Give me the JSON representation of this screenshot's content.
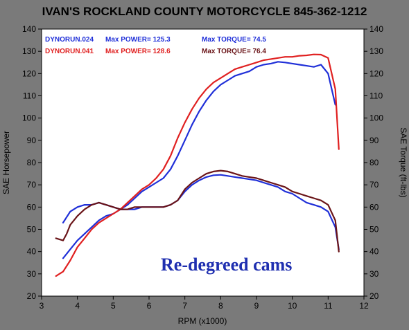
{
  "chart_data": {
    "type": "line",
    "title": "IVAN'S ROCKLAND COUNTY MOTORCYCLE 845-362-1212",
    "xlabel": "RPM (x1000)",
    "ylabel_left": "SAE Horsepower",
    "ylabel_right": "SAE Torque (ft-lbs)",
    "annotation": "Re-degreed cams",
    "xlim": [
      3,
      12
    ],
    "ylim": [
      20,
      140
    ],
    "x_ticks": [
      "3",
      "4",
      "5",
      "6",
      "7",
      "8",
      "9",
      "10",
      "11",
      "12"
    ],
    "y_ticks": [
      "20",
      "30",
      "40",
      "50",
      "60",
      "70",
      "80",
      "90",
      "100",
      "110",
      "120",
      "130",
      "140"
    ],
    "grid": false,
    "legend": [
      {
        "run": "DYNORUN.024",
        "power_label": "Max POWER= 125.3",
        "torque_label": "Max TORQUE= 74.5",
        "color": "#1f2fd8"
      },
      {
        "run": "DYNORUN.041",
        "power_label": "Max POWER= 128.6",
        "torque_label": "Max TORQUE= 76.4",
        "color": "#e02020"
      }
    ],
    "series": [
      {
        "name": "DYNORUN.024",
        "measure": "power",
        "color": "#1f2fd8",
        "x": [
          3.6,
          3.8,
          4.0,
          4.2,
          4.4,
          4.6,
          4.8,
          5.0,
          5.2,
          5.4,
          5.6,
          5.8,
          6.0,
          6.2,
          6.4,
          6.6,
          6.8,
          7.0,
          7.2,
          7.4,
          7.6,
          7.8,
          8.0,
          8.2,
          8.4,
          8.6,
          8.8,
          9.0,
          9.2,
          9.4,
          9.6,
          9.8,
          10.0,
          10.2,
          10.4,
          10.6,
          10.8,
          11.0,
          11.2
        ],
        "values": [
          37,
          41,
          45,
          48,
          51,
          54,
          56,
          57,
          59,
          61,
          64,
          67,
          69,
          71,
          73,
          77,
          83,
          90,
          97,
          103,
          108,
          112,
          115,
          117,
          119,
          120,
          121,
          123,
          124,
          124.5,
          125.3,
          125,
          124.5,
          124,
          123.5,
          123,
          124,
          120,
          106
        ]
      },
      {
        "name": "DYNORUN.041",
        "measure": "power",
        "color": "#e02020",
        "x": [
          3.4,
          3.6,
          3.8,
          4.0,
          4.2,
          4.4,
          4.6,
          4.8,
          5.0,
          5.2,
          5.4,
          5.6,
          5.8,
          6.0,
          6.2,
          6.4,
          6.6,
          6.8,
          7.0,
          7.2,
          7.4,
          7.6,
          7.8,
          8.0,
          8.2,
          8.4,
          8.6,
          8.8,
          9.0,
          9.2,
          9.4,
          9.6,
          9.8,
          10.0,
          10.2,
          10.4,
          10.6,
          10.8,
          11.0,
          11.2,
          11.3
        ],
        "values": [
          29,
          31,
          36,
          42,
          46,
          50,
          53,
          55,
          57,
          59,
          62,
          65,
          68,
          70,
          73,
          77,
          83,
          91,
          98,
          104,
          109,
          113,
          116,
          118,
          120,
          122,
          123,
          124,
          125,
          126,
          126.5,
          127,
          127.5,
          127.5,
          128,
          128.2,
          128.6,
          128.5,
          127,
          113,
          86
        ]
      },
      {
        "name": "DYNORUN.024",
        "measure": "torque",
        "color": "#1f2fd8",
        "x": [
          3.6,
          3.8,
          4.0,
          4.2,
          4.4,
          4.6,
          4.8,
          5.0,
          5.2,
          5.4,
          5.6,
          5.8,
          6.0,
          6.2,
          6.4,
          6.6,
          6.8,
          7.0,
          7.2,
          7.4,
          7.6,
          7.8,
          8.0,
          8.2,
          8.4,
          8.6,
          8.8,
          9.0,
          9.2,
          9.4,
          9.6,
          9.8,
          10.0,
          10.2,
          10.4,
          10.6,
          10.8,
          11.0,
          11.2,
          11.3
        ],
        "values": [
          53,
          58,
          60,
          61,
          61,
          62,
          61,
          60,
          59,
          59,
          59,
          60,
          60,
          60,
          60,
          61,
          63,
          67,
          70,
          72,
          73.5,
          74.3,
          74.5,
          74,
          73.5,
          73,
          72.5,
          72,
          71,
          70,
          69,
          67,
          66,
          64,
          62,
          61,
          60,
          58,
          51,
          41
        ]
      },
      {
        "name": "DYNORUN.041",
        "measure": "torque",
        "color": "#6a1418",
        "x": [
          3.4,
          3.6,
          3.7,
          3.8,
          4.0,
          4.2,
          4.4,
          4.6,
          4.8,
          5.0,
          5.2,
          5.4,
          5.6,
          5.8,
          6.0,
          6.2,
          6.4,
          6.6,
          6.8,
          7.0,
          7.2,
          7.4,
          7.6,
          7.8,
          8.0,
          8.2,
          8.4,
          8.6,
          8.8,
          9.0,
          9.2,
          9.4,
          9.6,
          9.8,
          10.0,
          10.2,
          10.4,
          10.6,
          10.8,
          11.0,
          11.2,
          11.3
        ],
        "values": [
          46,
          45,
          48,
          52,
          56,
          59,
          61,
          62,
          61,
          60,
          59,
          59,
          60,
          60,
          60,
          60,
          60,
          61,
          63,
          68,
          71,
          73,
          75,
          76,
          76.4,
          76,
          75,
          74,
          73.5,
          73,
          72,
          71,
          70,
          69,
          67,
          66,
          65,
          64,
          63,
          61,
          54,
          40
        ]
      }
    ]
  }
}
